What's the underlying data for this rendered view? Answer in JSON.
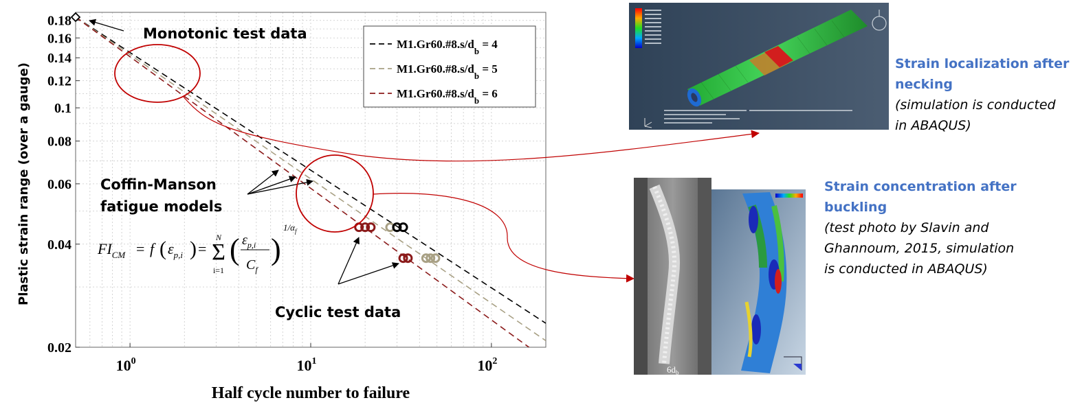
{
  "chart_data": {
    "type": "line",
    "log_x": true,
    "log_y": true,
    "xlabel": "Half cycle number to failure",
    "ylabel": "Plastic strain range (over a gauge)",
    "xlim": [
      0.5,
      200
    ],
    "ylim": [
      0.02,
      0.19
    ],
    "x_ticks": [
      {
        "v": 1,
        "base": "10",
        "exp": "0"
      },
      {
        "v": 10,
        "base": "10",
        "exp": "1"
      },
      {
        "v": 100,
        "base": "10",
        "exp": "2"
      }
    ],
    "y_ticks": [
      {
        "v": 0.02,
        "label": "0.02"
      },
      {
        "v": 0.04,
        "label": "0.04"
      },
      {
        "v": 0.06,
        "label": "0.06"
      },
      {
        "v": 0.08,
        "label": "0.08"
      },
      {
        "v": 0.1,
        "label": "0.1"
      },
      {
        "v": 0.12,
        "label": "0.12"
      },
      {
        "v": 0.14,
        "label": "0.14"
      },
      {
        "v": 0.16,
        "label": "0.16"
      },
      {
        "v": 0.18,
        "label": "0.18"
      }
    ],
    "grid": true,
    "legend_position": "top-right",
    "series": [
      {
        "name": "M1.Gr60.#8.s/d",
        "sub": "b",
        "suffix": " = 4",
        "color": "#000000",
        "x": [
          0.5,
          200
        ],
        "y": [
          0.184,
          0.0235
        ]
      },
      {
        "name": "M1.Gr60.#8.s/d",
        "sub": "b",
        "suffix": " = 5",
        "color": "#a8a084",
        "x": [
          0.5,
          200
        ],
        "y": [
          0.184,
          0.0209
        ]
      },
      {
        "name": "M1.Gr60.#8.s/d",
        "sub": "b",
        "suffix": " = 6",
        "color": "#8b1a1a",
        "x": [
          0.5,
          170
        ],
        "y": [
          0.184,
          0.0196
        ]
      }
    ],
    "monotonic_point": {
      "x": 0.5,
      "y": 0.184
    },
    "cyclic_points": [
      {
        "x": 18.5,
        "y": 0.0448,
        "color": "#8b1a1a"
      },
      {
        "x": 20.0,
        "y": 0.0448,
        "color": "#8b1a1a"
      },
      {
        "x": 21.5,
        "y": 0.0448,
        "color": "#8b1a1a"
      },
      {
        "x": 27.5,
        "y": 0.0448,
        "color": "#a8a084"
      },
      {
        "x": 30.0,
        "y": 0.0448,
        "color": "#000000"
      },
      {
        "x": 32.5,
        "y": 0.0448,
        "color": "#000000"
      },
      {
        "x": 32.5,
        "y": 0.0364,
        "color": "#8b1a1a"
      },
      {
        "x": 34.5,
        "y": 0.0364,
        "color": "#8b1a1a"
      },
      {
        "x": 43.5,
        "y": 0.0364,
        "color": "#a8a084"
      },
      {
        "x": 46.0,
        "y": 0.0364,
        "color": "#a8a084"
      },
      {
        "x": 49.0,
        "y": 0.0364,
        "color": "#a8a084"
      }
    ],
    "annotations": {
      "monotonic": "Monotonic test data",
      "cm_line1": "Coffin-Manson",
      "cm_line2": "fatigue models",
      "cyclic": "Cyclic test data"
    }
  },
  "formula": {
    "lhs": "FI",
    "lhs_sub": "CM",
    "f": "f",
    "eps": "ε",
    "eps_sub": "p,i",
    "sum": "Σ",
    "sum_top": "N",
    "sum_bottom": "i=1",
    "den": "C",
    "den_sub": "f",
    "exp": "1/α",
    "exp_sub": "f"
  },
  "image_top": {
    "heading": "Strain localization after necking",
    "note": "(simulation is conducted in ABAQUS)",
    "heading_lines": [
      "Strain localization after",
      "necking"
    ],
    "note_lines": [
      "(simulation is conducted",
      "in ABAQUS)"
    ]
  },
  "image_bottom": {
    "heading": "Strain concentration after buckling",
    "note": "(test photo by Slavin and Ghannoum, 2015, simulation is conducted in ABAQUS)",
    "heading_lines": [
      "Strain concentration after",
      "buckling"
    ],
    "note_lines": [
      "(test photo by Slavin and",
      "Ghannoum, 2015, simulation",
      "is conducted in ABAQUS)"
    ],
    "photo_label": "6d",
    "photo_label_sub": "b"
  },
  "colors": {
    "annotation_red": "#c00000",
    "heading_blue": "#4472c4",
    "fea_bg": "#2e3f52",
    "fea_green": "#3cc83c",
    "fea_red": "#d21e1e"
  }
}
